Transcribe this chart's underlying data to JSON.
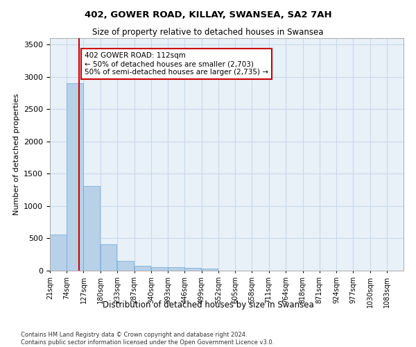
{
  "title": "402, GOWER ROAD, KILLAY, SWANSEA, SA2 7AH",
  "subtitle": "Size of property relative to detached houses in Swansea",
  "xlabel": "Distribution of detached houses by size in Swansea",
  "ylabel": "Number of detached properties",
  "bar_color": "#b8d0e8",
  "bar_edge_color": "#6aaad4",
  "grid_color": "#c8d8ea",
  "background_color": "#e8f0f8",
  "annotation_box_color": "#cc0000",
  "annotation_text": "402 GOWER ROAD: 112sqm\n← 50% of detached houses are smaller (2,703)\n50% of semi-detached houses are larger (2,735) →",
  "vline_x": 112,
  "vline_color": "#cc0000",
  "categories": [
    "21sqm",
    "74sqm",
    "127sqm",
    "180sqm",
    "233sqm",
    "287sqm",
    "340sqm",
    "393sqm",
    "446sqm",
    "499sqm",
    "552sqm",
    "605sqm",
    "658sqm",
    "711sqm",
    "764sqm",
    "818sqm",
    "871sqm",
    "924sqm",
    "977sqm",
    "1030sqm",
    "1083sqm"
  ],
  "bin_edges": [
    21,
    74,
    127,
    180,
    233,
    287,
    340,
    393,
    446,
    499,
    552,
    605,
    658,
    711,
    764,
    818,
    871,
    924,
    977,
    1030,
    1083
  ],
  "values": [
    560,
    2900,
    1310,
    410,
    150,
    80,
    55,
    50,
    40,
    35,
    0,
    0,
    0,
    0,
    0,
    0,
    0,
    0,
    0,
    0,
    0
  ],
  "ylim": [
    0,
    3600
  ],
  "yticks": [
    0,
    500,
    1000,
    1500,
    2000,
    2500,
    3000,
    3500
  ],
  "footnote": "Contains HM Land Registry data © Crown copyright and database right 2024.\nContains public sector information licensed under the Open Government Licence v3.0."
}
